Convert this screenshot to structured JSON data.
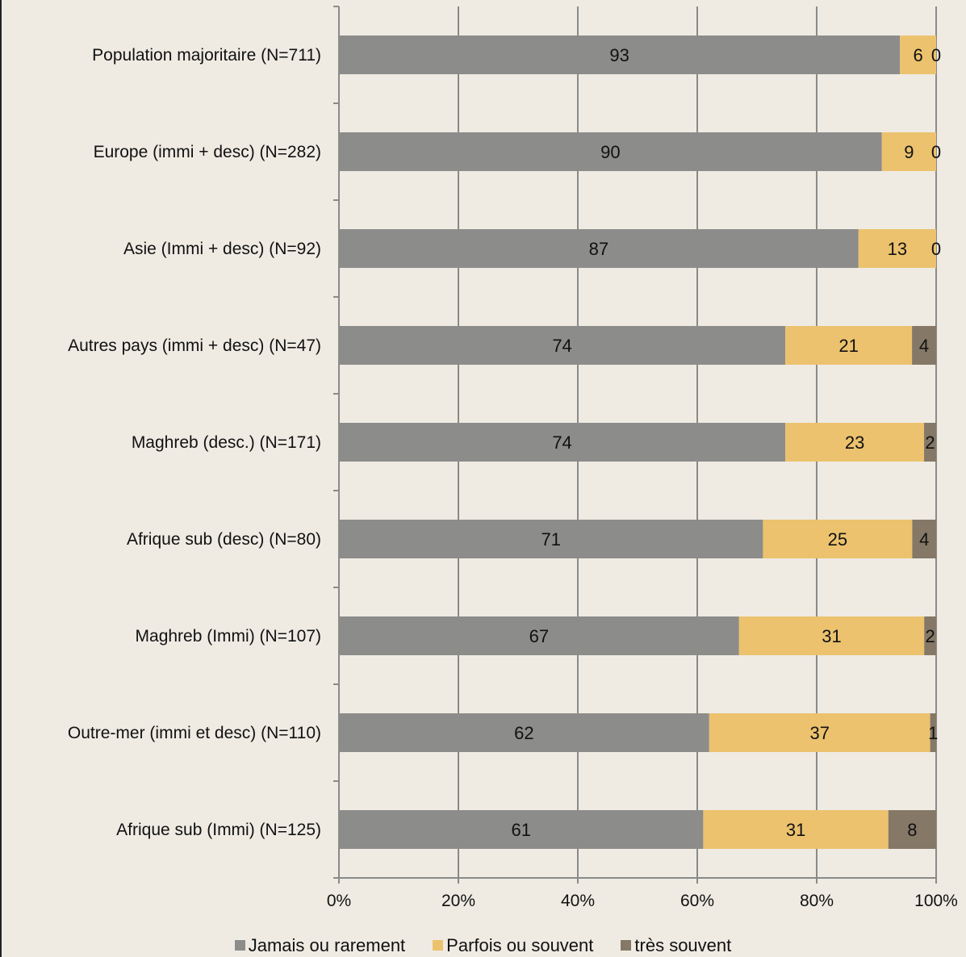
{
  "chart_data": {
    "type": "bar",
    "orientation": "horizontal",
    "stacked": true,
    "percent": true,
    "categories": [
      "Population majoritaire (N=711)",
      "Europe (immi + desc) (N=282)",
      "Asie (Immi + desc) (N=92)",
      "Autres pays (immi  + desc) (N=47)",
      "Maghreb (desc.) (N=171)",
      "Afrique sub (desc) (N=80)",
      "Maghreb (Immi) (N=107)",
      "Outre-mer (immi et desc) (N=110)",
      "Afrique sub (Immi) (N=125)"
    ],
    "series": [
      {
        "name": "Jamais ou rarement",
        "color": "#8c8c8a",
        "values": [
          93,
          90,
          87,
          74,
          74,
          71,
          67,
          62,
          61
        ]
      },
      {
        "name": "Parfois ou souvent",
        "color": "#ecc26e",
        "values": [
          6,
          9,
          13,
          21,
          23,
          25,
          31,
          37,
          31
        ]
      },
      {
        "name": "très souvent",
        "color": "#857866",
        "values": [
          0,
          0,
          0,
          4,
          2,
          4,
          2,
          1,
          8
        ]
      }
    ],
    "xticks": [
      "0%",
      "20%",
      "40%",
      "60%",
      "80%",
      "100%"
    ],
    "xlim": [
      0,
      100
    ],
    "grid": true,
    "legend_position": "bottom",
    "title": "",
    "xlabel": "",
    "ylabel": ""
  }
}
